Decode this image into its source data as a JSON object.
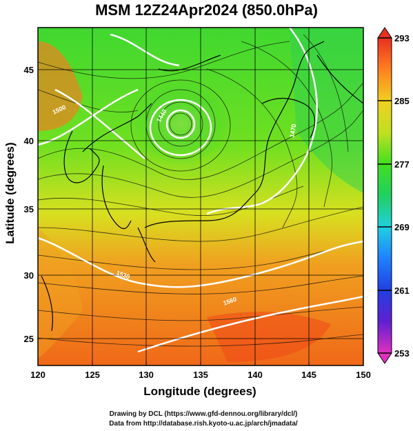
{
  "title": "MSM 12Z24Apr2024 (850.0hPa)",
  "x_axis": {
    "label": "Longitude (degrees)",
    "ticks": [
      "120",
      "125",
      "130",
      "135",
      "140",
      "145",
      "150"
    ]
  },
  "y_axis": {
    "label": "Latitude  (degrees)",
    "ticks": [
      "25",
      "30",
      "35",
      "40",
      "45"
    ]
  },
  "colorbar": {
    "ticks": [
      "293",
      "285",
      "277",
      "269",
      "261",
      "253"
    ],
    "min": 253,
    "max": 293
  },
  "contour_labels": [
    "1500",
    "1440",
    "1470",
    "1530",
    "1560"
  ],
  "credits": {
    "line1": "Drawing by DCL (https://www.gfd-dennou.org/library/dcl/)",
    "line2": "Data from http://database.rish.kyoto-u.ac.jp/arch/jmadata/"
  },
  "colors": {
    "warm": "#ff7020",
    "mid": "#f0e020",
    "cool": "#20e020",
    "frame": "#000000"
  },
  "map_extent": {
    "lon": [
      120,
      150
    ],
    "lat": [
      22.5,
      48
    ]
  }
}
